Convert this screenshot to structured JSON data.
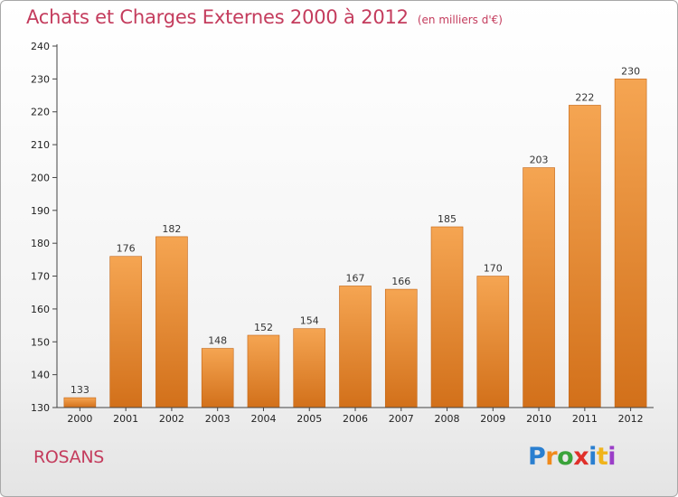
{
  "title": "Achats et Charges Externes 2000 à 2012",
  "subtitle": "(en milliers d'€)",
  "commune": "ROSANS",
  "logo": {
    "text": "Proxiti",
    "letters": [
      {
        "char": "P",
        "color": "#2a7fd0"
      },
      {
        "char": "r",
        "color": "#f08a1c"
      },
      {
        "char": "o",
        "color": "#3aa33a"
      },
      {
        "char": "x",
        "color": "#e0302a"
      },
      {
        "char": "i",
        "color": "#2a7fd0"
      },
      {
        "char": "t",
        "color": "#f0b41c"
      },
      {
        "char": "i",
        "color": "#9b3ec8"
      }
    ]
  },
  "colors": {
    "title": "#c43c5d",
    "bar_top": "#f5a552",
    "bar_bottom": "#d2701a",
    "bar_edge": "#c36414",
    "axis": "#444444"
  },
  "chart_data": {
    "type": "bar",
    "categories": [
      "2000",
      "2001",
      "2002",
      "2003",
      "2004",
      "2005",
      "2006",
      "2007",
      "2008",
      "2009",
      "2010",
      "2011",
      "2012"
    ],
    "values": [
      133,
      176,
      182,
      148,
      152,
      154,
      167,
      166,
      185,
      170,
      203,
      222,
      230
    ],
    "ylim": [
      130,
      240
    ],
    "yticks": [
      130,
      140,
      150,
      160,
      170,
      180,
      190,
      200,
      210,
      220,
      230,
      240
    ],
    "xlabel": "",
    "ylabel": "",
    "grid": false,
    "legend": "none"
  }
}
